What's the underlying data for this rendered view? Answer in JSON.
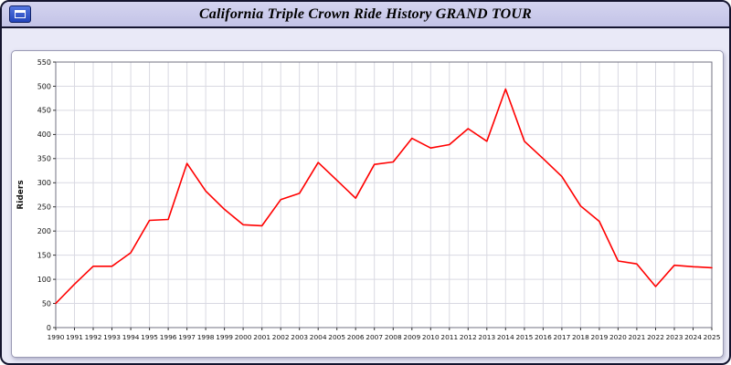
{
  "header": {
    "title": "California Triple Crown Ride History GRAND TOUR"
  },
  "icons": {
    "app_icon": "window-icon"
  },
  "chart_data": {
    "type": "line",
    "title": "California Triple Crown Ride History GRAND TOUR",
    "xlabel": "",
    "ylabel": "Riders",
    "ylim": [
      0,
      550
    ],
    "ytick_step": 50,
    "grid": true,
    "legend": "none",
    "line_color": "#ff0000",
    "grid_color": "#d9d9e2",
    "frame_color": "#707080",
    "x": [
      1990,
      1991,
      1992,
      1993,
      1994,
      1995,
      1996,
      1997,
      1998,
      1999,
      2000,
      2001,
      2002,
      2003,
      2004,
      2005,
      2006,
      2007,
      2008,
      2009,
      2010,
      2011,
      2012,
      2013,
      2014,
      2015,
      2016,
      2017,
      2018,
      2019,
      2020,
      2021,
      2022,
      2023,
      2024,
      2025
    ],
    "values": [
      50,
      90,
      127,
      127,
      155,
      222,
      224,
      340,
      283,
      245,
      213,
      211,
      265,
      278,
      342,
      305,
      268,
      338,
      343,
      392,
      372,
      379,
      412,
      386,
      494,
      386,
      350,
      313,
      252,
      220,
      138,
      132,
      85,
      129,
      126,
      124
    ]
  }
}
